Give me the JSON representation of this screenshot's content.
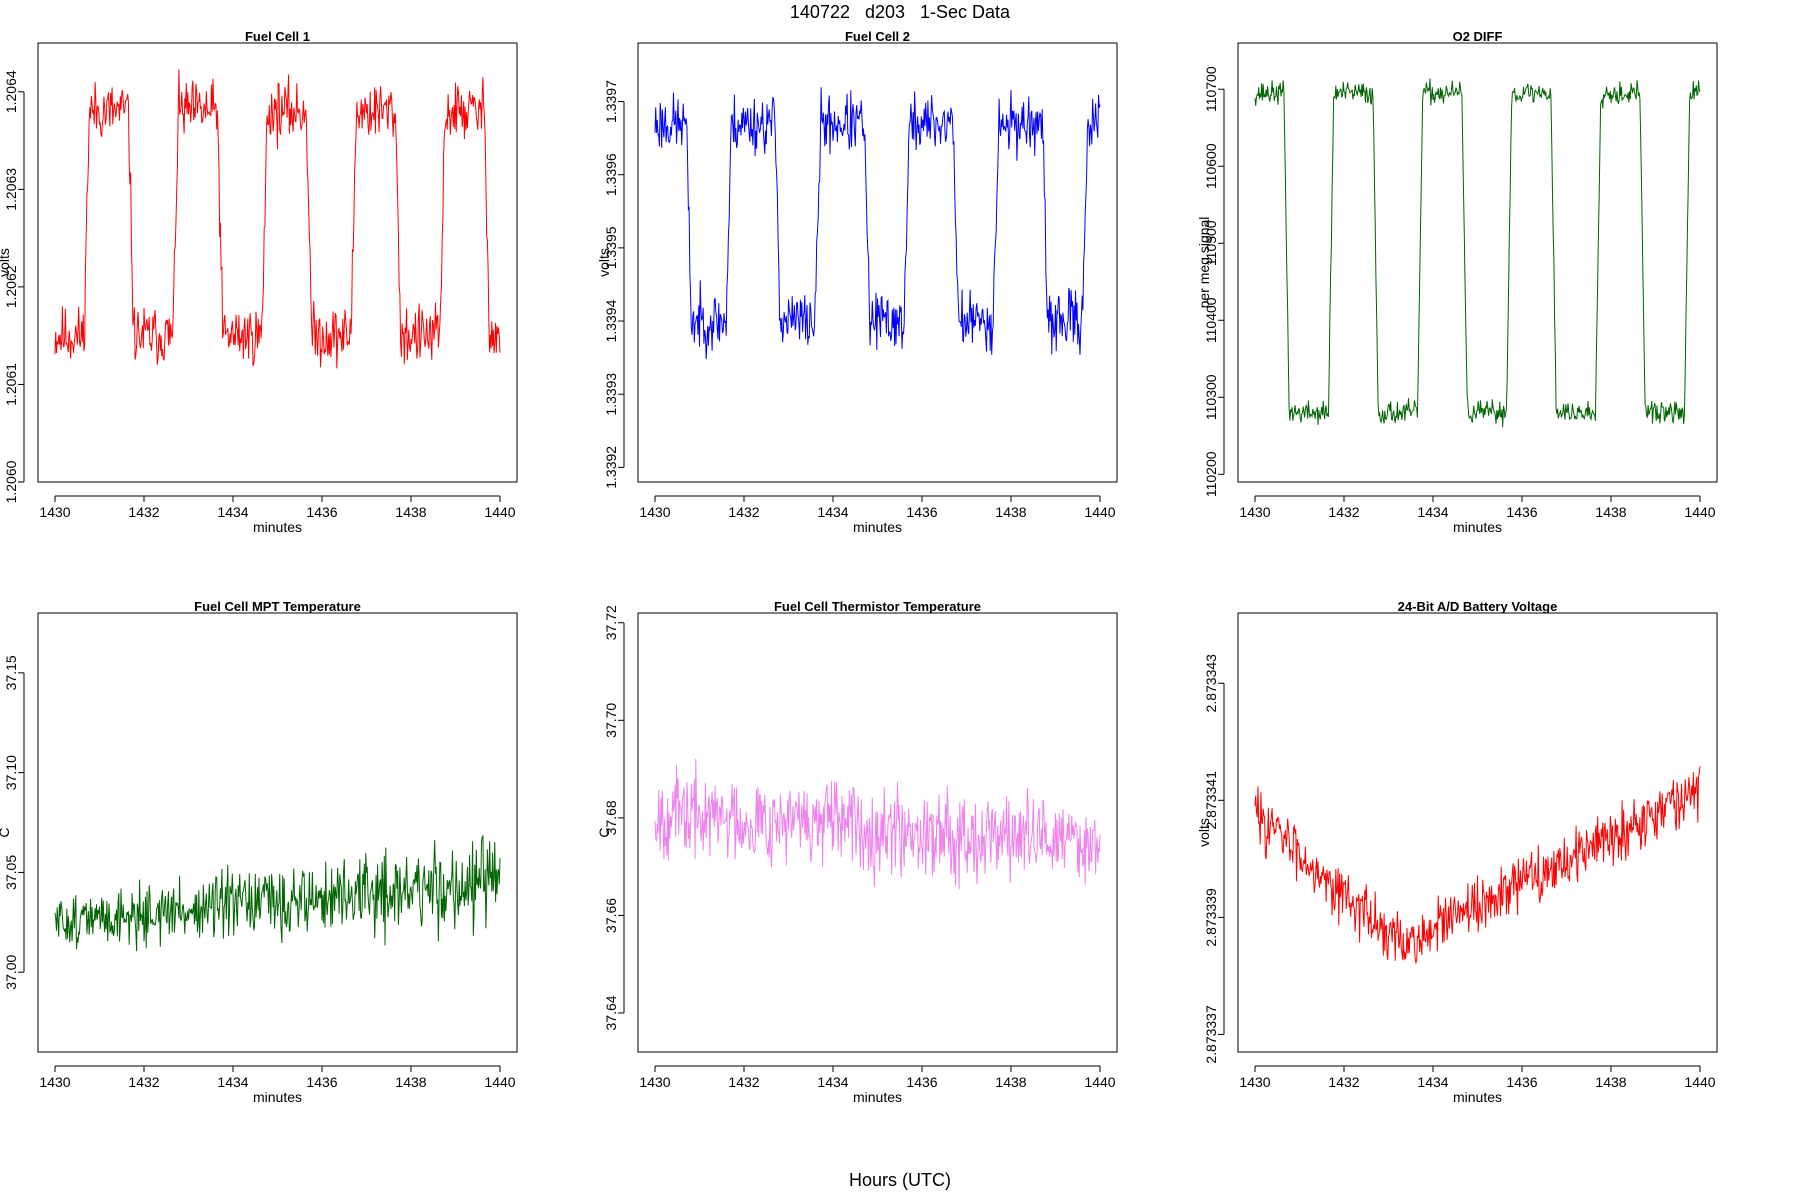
{
  "figure": {
    "title": "140722   d203   1-Sec Data",
    "footer": "Hours (UTC)"
  },
  "chart_data": [
    {
      "type": "line",
      "title": "Fuel Cell 1",
      "xlabel": "minutes",
      "ylabel": "volts",
      "color": "#ff0000",
      "xlim": [
        1430,
        1440
      ],
      "ylim": [
        1.206,
        1.20645
      ],
      "xticks": [
        "1430",
        "1432",
        "1434",
        "1436",
        "1438",
        "1440"
      ],
      "yticks": [
        "1.2060",
        "1.2061",
        "1.2062",
        "1.2063",
        "1.2064"
      ],
      "ytick_values": [
        1.206,
        1.2061,
        1.2062,
        1.2063,
        1.2064
      ],
      "pattern": {
        "kind": "square",
        "low": 1.20615,
        "high": 1.20638,
        "noise": 4.5e-05,
        "transitions": [
          1430.65,
          1431.65,
          1432.65,
          1433.65,
          1434.65,
          1435.65,
          1436.65,
          1437.65,
          1438.65,
          1439.65
        ],
        "start_high": false,
        "seed": 11
      }
    },
    {
      "type": "line",
      "title": "Fuel Cell 2",
      "xlabel": "minutes",
      "ylabel": "volts",
      "color": "#0000ff",
      "xlim": [
        1430,
        1440
      ],
      "ylim": [
        1.33918,
        1.33978
      ],
      "xticks": [
        "1430",
        "1432",
        "1434",
        "1436",
        "1438",
        "1440"
      ],
      "yticks": [
        "1.3392",
        "1.3393",
        "1.3394",
        "1.3395",
        "1.3396",
        "1.3397"
      ],
      "ytick_values": [
        1.3392,
        1.3393,
        1.3394,
        1.3395,
        1.3396,
        1.3397
      ],
      "pattern": {
        "kind": "square",
        "low": 1.3394,
        "high": 1.33967,
        "noise": 6e-05,
        "transitions": [
          1430.7,
          1431.6,
          1432.7,
          1433.6,
          1434.7,
          1435.6,
          1436.7,
          1437.6,
          1438.7,
          1439.6
        ],
        "start_high": true,
        "seed": 23
      }
    },
    {
      "type": "line",
      "title": "O2 DIFF",
      "xlabel": "minutes",
      "ylabel": "per meg signal",
      "color": "#006400",
      "xlim": [
        1430,
        1440
      ],
      "ylim": [
        110190,
        110760
      ],
      "xticks": [
        "1430",
        "1432",
        "1434",
        "1436",
        "1438",
        "1440"
      ],
      "yticks": [
        "110200",
        "110300",
        "110400",
        "110500",
        "110600",
        "110700"
      ],
      "ytick_values": [
        110200,
        110300,
        110400,
        110500,
        110600,
        110700
      ],
      "pattern": {
        "kind": "square",
        "low": 110280,
        "high": 110695,
        "noise": 22,
        "transitions": [
          1430.65,
          1431.65,
          1432.65,
          1433.65,
          1434.65,
          1435.65,
          1436.65,
          1437.65,
          1438.65,
          1439.65
        ],
        "start_high": true,
        "seed": 37
      }
    },
    {
      "type": "line",
      "title": "Fuel Cell MPT Temperature",
      "xlabel": "minutes",
      "ylabel": "C",
      "color": "#006400",
      "xlim": [
        1430,
        1440
      ],
      "ylim": [
        36.96,
        37.18
      ],
      "xticks": [
        "1430",
        "1432",
        "1434",
        "1436",
        "1438",
        "1440"
      ],
      "yticks": [
        "37.00",
        "37.05",
        "37.10",
        "37.15"
      ],
      "ytick_values": [
        37.0,
        37.05,
        37.1,
        37.15
      ],
      "pattern": {
        "kind": "noise",
        "start": 37.025,
        "end": 37.045,
        "amp_start": 0.018,
        "amp_end": 0.035,
        "seed": 51
      }
    },
    {
      "type": "line",
      "title": "Fuel Cell Thermistor Temperature",
      "xlabel": "minutes",
      "ylabel": "C",
      "color": "#ee82ee",
      "xlim": [
        1430,
        1440
      ],
      "ylim": [
        37.632,
        37.722
      ],
      "xticks": [
        "1430",
        "1432",
        "1434",
        "1436",
        "1438",
        "1440"
      ],
      "yticks": [
        "37.64",
        "37.66",
        "37.68",
        "37.70",
        "37.72"
      ],
      "ytick_values": [
        37.64,
        37.66,
        37.68,
        37.7,
        37.72
      ],
      "pattern": {
        "kind": "noise",
        "start": 37.681,
        "end": 37.675,
        "amp_start": 0.013,
        "amp_end": 0.013,
        "seed": 67
      }
    },
    {
      "type": "line",
      "title": "24-Bit A/D Battery Voltage",
      "xlabel": "minutes",
      "ylabel": "volts",
      "color": "#ff0000",
      "xlim": [
        1430,
        1440
      ],
      "ylim": [
        2.8733367,
        2.8733442
      ],
      "xticks": [
        "1430",
        "1432",
        "1434",
        "1436",
        "1438",
        "1440"
      ],
      "yticks": [
        "2.873337",
        "2.873339",
        "2.873341",
        "2.873343"
      ],
      "ytick_values": [
        2.873337,
        2.873339,
        2.873341,
        2.873343
      ],
      "pattern": {
        "kind": "valley",
        "start": 2.8733408,
        "min": 2.8733385,
        "end": 2.8733412,
        "amp": 7e-07,
        "seed": 83
      }
    }
  ]
}
